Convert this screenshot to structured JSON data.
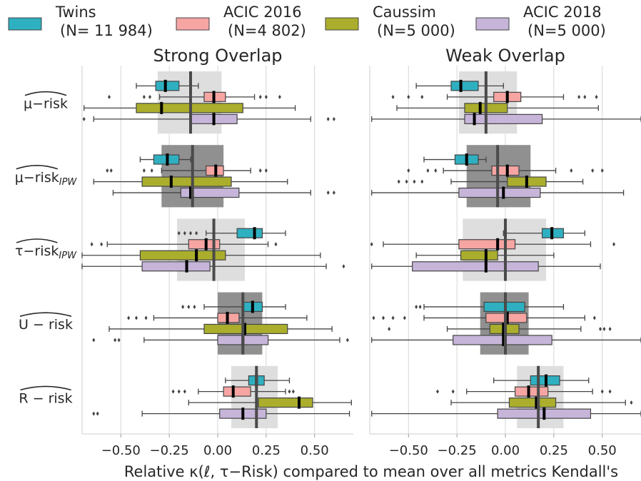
{
  "chart_data": {
    "type": "boxplot",
    "xlabel": "Relative κ(ℓ, τ−Risk) compared to mean over all metrics Kendall's",
    "xlim": [
      -0.7,
      0.7
    ],
    "xticks": [
      {
        "value": -0.5,
        "label": "−0.50"
      },
      {
        "value": -0.25,
        "label": "−0.25"
      },
      {
        "value": 0,
        "label": "0.00"
      },
      {
        "value": 0.25,
        "label": "0.25"
      },
      {
        "value": 0.5,
        "label": "0.50"
      }
    ],
    "grid": true,
    "series": [
      {
        "name": "Twins",
        "subtitle": "(N= 11 984)",
        "color": "#2eb0c1"
      },
      {
        "name": "ACIC 2016",
        "subtitle": "(N=4 802)",
        "color": "#f6a5a3"
      },
      {
        "name": "Caussim",
        "subtitle": "(N=5 000)",
        "color": "#aaae2c"
      },
      {
        "name": "ACIC 2018",
        "subtitle": "(N=5 000)",
        "color": "#c6b5d9"
      }
    ],
    "categories": [
      {
        "text": "μ−risk"
      },
      {
        "text": "μ−risk",
        "sub": "IPW"
      },
      {
        "text": "τ−risk",
        "sub": "IPW"
      },
      {
        "text": "U − risk"
      },
      {
        "text": "R − risk"
      }
    ],
    "panels": [
      {
        "title": "Strong Overlap",
        "groups": [
          {
            "band": [
              -0.31,
              0.02
            ],
            "band_color": "#dcdcdc",
            "mean": -0.14,
            "boxes": [
              {
                "whislo": -0.42,
                "q1": -0.32,
                "med": -0.27,
                "q3": -0.2,
                "whishi": -0.1,
                "fliers": []
              },
              {
                "whislo": -0.3,
                "q1": -0.07,
                "med": -0.02,
                "q3": 0.04,
                "whishi": 0.19,
                "fliers": [
                  -0.56,
                  -0.38,
                  -0.35,
                  0.22,
                  0.25,
                  0.32
                ]
              },
              {
                "whislo": -0.69,
                "q1": -0.42,
                "med": -0.29,
                "q3": 0.13,
                "whishi": 0.4,
                "fliers": []
              },
              {
                "whislo": -0.64,
                "q1": -0.14,
                "med": -0.02,
                "q3": 0.1,
                "whishi": 0.48,
                "fliers": [
                  -0.69,
                  0.57,
                  0.6
                ]
              }
            ]
          },
          {
            "band": [
              -0.29,
              0.03
            ],
            "band_color": "#8a8a8a",
            "mean": -0.13,
            "boxes": [
              {
                "whislo": -0.4,
                "q1": -0.33,
                "med": -0.26,
                "q3": -0.2,
                "whishi": -0.14,
                "fliers": []
              },
              {
                "whislo": -0.29,
                "q1": -0.06,
                "med": -0.01,
                "q3": 0.03,
                "whishi": 0.17,
                "fliers": [
                  -0.57,
                  -0.55,
                  -0.38,
                  -0.34,
                  0.22,
                  0.25
                ]
              },
              {
                "whislo": -0.64,
                "q1": -0.39,
                "med": -0.24,
                "q3": 0.07,
                "whishi": 0.36,
                "fliers": []
              },
              {
                "whislo": -0.54,
                "q1": -0.19,
                "med": -0.14,
                "q3": 0.11,
                "whishi": 0.48,
                "fliers": [
                  0.57,
                  0.6
                ]
              }
            ]
          },
          {
            "band": [
              -0.21,
              0.14
            ],
            "band_color": "#dcdcdc",
            "mean": -0.02,
            "boxes": [
              {
                "whislo": -0.06,
                "q1": 0.1,
                "med": 0.19,
                "q3": 0.23,
                "whishi": 0.35,
                "fliers": [
                  -0.2,
                  -0.17,
                  -0.14,
                  -0.11
                ]
              },
              {
                "whislo": -0.57,
                "q1": -0.15,
                "med": -0.06,
                "q3": 0.01,
                "whishi": 0.26,
                "fliers": [
                  -0.65,
                  -0.6,
                  0.3
                ]
              },
              {
                "whislo": -0.7,
                "q1": -0.4,
                "med": -0.11,
                "q3": 0.04,
                "whishi": 0.53,
                "fliers": []
              },
              {
                "whislo": -0.7,
                "q1": -0.39,
                "med": -0.16,
                "q3": -0.04,
                "whishi": 0.56,
                "fliers": [
                  0.65
                ]
              }
            ]
          },
          {
            "band": [
              0.0,
              0.23
            ],
            "band_color": "#8a8a8a",
            "mean": 0.13,
            "boxes": [
              {
                "whislo": -0.07,
                "q1": 0.13,
                "med": 0.18,
                "q3": 0.23,
                "whishi": 0.35,
                "fliers": [
                  -0.18,
                  -0.15,
                  -0.12
                ]
              },
              {
                "whislo": -0.33,
                "q1": 0.0,
                "med": 0.05,
                "q3": 0.11,
                "whishi": 0.46,
                "fliers": [
                  -0.46,
                  -0.42,
                  -0.37
                ]
              },
              {
                "whislo": -0.56,
                "q1": -0.07,
                "med": 0.14,
                "q3": 0.36,
                "whishi": 0.59,
                "fliers": []
              },
              {
                "whislo": -0.38,
                "q1": 0.0,
                "med": 0.13,
                "q3": 0.26,
                "whishi": 0.63,
                "fliers": [
                  -0.64,
                  -0.53,
                  -0.51,
                  0.67
                ]
              }
            ]
          },
          {
            "band": [
              0.07,
              0.31
            ],
            "band_color": "#dcdcdc",
            "mean": 0.2,
            "boxes": [
              {
                "whislo": 0.04,
                "q1": 0.16,
                "med": 0.2,
                "q3": 0.24,
                "whishi": 0.37,
                "fliers": []
              },
              {
                "whislo": -0.1,
                "q1": 0.03,
                "med": 0.08,
                "q3": 0.17,
                "whishi": 0.35,
                "fliers": [
                  -0.23,
                  -0.2,
                  -0.17,
                  0.37,
                  0.39
                ]
              },
              {
                "whislo": -0.15,
                "q1": 0.21,
                "med": 0.42,
                "q3": 0.49,
                "whishi": 0.69,
                "fliers": []
              },
              {
                "whislo": -0.39,
                "q1": 0.01,
                "med": 0.13,
                "q3": 0.25,
                "whishi": 0.68,
                "fliers": [
                  -0.64,
                  -0.62
                ]
              }
            ]
          }
        ]
      },
      {
        "title": "Weak Overlap",
        "groups": [
          {
            "band": [
              -0.24,
              0.06
            ],
            "band_color": "#dcdcdc",
            "mean": -0.1,
            "boxes": [
              {
                "whislo": -0.46,
                "q1": -0.28,
                "med": -0.23,
                "q3": -0.14,
                "whishi": -0.01,
                "fliers": []
              },
              {
                "whislo": -0.3,
                "q1": -0.06,
                "med": 0.01,
                "q3": 0.08,
                "whishi": 0.3,
                "fliers": [
                  -0.58,
                  -0.5,
                  -0.43,
                  0.38,
                  0.41,
                  0.47
                ]
              },
              {
                "whislo": -0.56,
                "q1": -0.21,
                "med": -0.13,
                "q3": 0.01,
                "whishi": 0.48,
                "fliers": []
              },
              {
                "whislo": -0.69,
                "q1": -0.21,
                "med": -0.16,
                "q3": 0.19,
                "whishi": 0.7,
                "fliers": []
              }
            ]
          },
          {
            "band": [
              -0.2,
              0.13
            ],
            "band_color": "#8a8a8a",
            "mean": -0.04,
            "boxes": [
              {
                "whislo": -0.42,
                "q1": -0.26,
                "med": -0.2,
                "q3": -0.14,
                "whishi": -0.1,
                "fliers": []
              },
              {
                "whislo": -0.32,
                "q1": -0.07,
                "med": 0.01,
                "q3": 0.07,
                "whishi": 0.26,
                "fliers": [
                  -0.5,
                  -0.4,
                  -0.36,
                  0.34,
                  0.45,
                  0.5
                ]
              },
              {
                "whislo": -0.28,
                "q1": 0.01,
                "med": 0.11,
                "q3": 0.21,
                "whishi": 0.4,
                "fliers": [
                  -0.55,
                  -0.51,
                  -0.47,
                  -0.43
                ]
              },
              {
                "whislo": -0.69,
                "q1": -0.24,
                "med": -0.01,
                "q3": 0.18,
                "whishi": 0.61,
                "fliers": []
              }
            ]
          },
          {
            "band": [
              -0.22,
              0.21
            ],
            "band_color": "#dcdcdc",
            "mean": 0.0,
            "boxes": [
              {
                "whislo": -0.01,
                "q1": 0.19,
                "med": 0.24,
                "q3": 0.3,
                "whishi": 0.41,
                "fliers": []
              },
              {
                "whislo": -0.63,
                "q1": -0.24,
                "med": -0.04,
                "q3": 0.05,
                "whishi": 0.44,
                "fliers": [
                  -0.69,
                  0.56
                ]
              },
              {
                "whislo": -0.46,
                "q1": -0.23,
                "med": -0.1,
                "q3": -0.04,
                "whishi": 0.25,
                "fliers": []
              },
              {
                "whislo": -0.69,
                "q1": -0.48,
                "med": -0.1,
                "q3": 0.17,
                "whishi": 0.49,
                "fliers": []
              }
            ]
          },
          {
            "band": [
              -0.13,
              0.12
            ],
            "band_color": "#8a8a8a",
            "mean": 0.0,
            "boxes": [
              {
                "whislo": -0.42,
                "q1": -0.11,
                "med": 0.0,
                "q3": 0.1,
                "whishi": 0.3,
                "fliers": [
                  -0.46,
                  -0.44
                ]
              },
              {
                "whislo": -0.42,
                "q1": -0.1,
                "med": 0.01,
                "q3": 0.11,
                "whishi": 0.41,
                "fliers": [
                  -0.68,
                  -0.63,
                  -0.58,
                  -0.52,
                  0.46
                ]
              },
              {
                "whislo": -0.3,
                "q1": -0.08,
                "med": -0.01,
                "q3": 0.07,
                "whishi": 0.39,
                "fliers": [
                  -0.6,
                  0.49,
                  0.51,
                  0.54
                ]
              },
              {
                "whislo": -0.69,
                "q1": -0.27,
                "med": -0.01,
                "q3": 0.24,
                "whishi": 0.7,
                "fliers": []
              }
            ]
          },
          {
            "band": [
              0.06,
              0.3
            ],
            "band_color": "#dcdcdc",
            "mean": 0.17,
            "boxes": [
              {
                "whislo": -0.06,
                "q1": 0.13,
                "med": 0.21,
                "q3": 0.28,
                "whishi": 0.43,
                "fliers": []
              },
              {
                "whislo": -0.2,
                "q1": 0.05,
                "med": 0.12,
                "q3": 0.22,
                "whishi": 0.45,
                "fliers": [
                  -0.35,
                  -0.27,
                  0.5,
                  0.54
                ]
              },
              {
                "whislo": -0.28,
                "q1": 0.02,
                "med": 0.16,
                "q3": 0.26,
                "whishi": 0.62,
                "fliers": [
                  0.65
                ]
              },
              {
                "whislo": -0.69,
                "q1": -0.04,
                "med": 0.2,
                "q3": 0.44,
                "whishi": 0.7,
                "fliers": []
              }
            ]
          }
        ]
      }
    ]
  }
}
